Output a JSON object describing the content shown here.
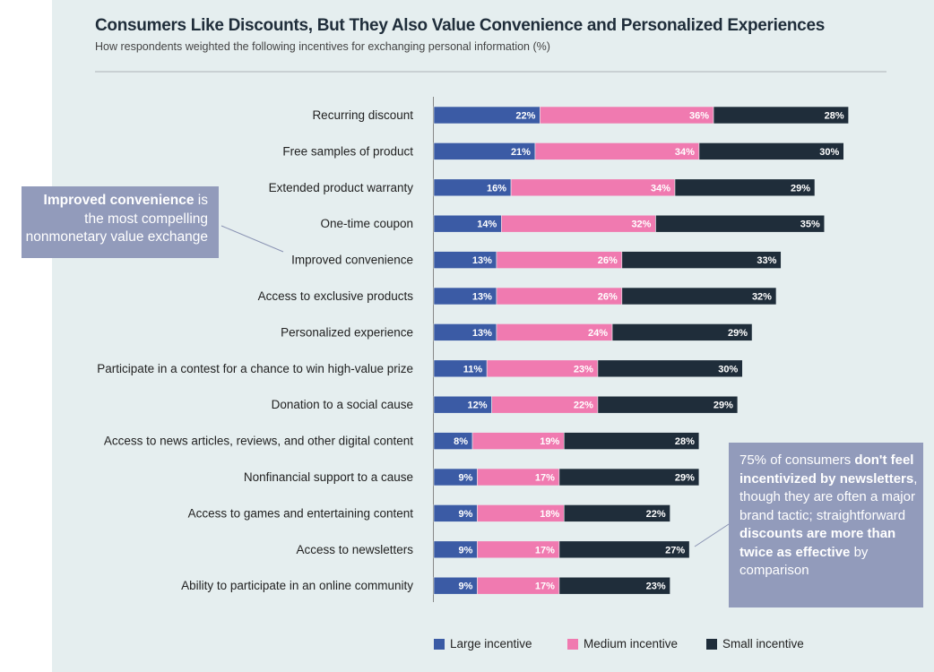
{
  "chart_data": {
    "type": "bar",
    "orientation": "horizontal",
    "stacked": true,
    "title": "Consumers Like Discounts, But They Also Value Convenience and Personalized Experiences",
    "subtitle": "How respondents weighted the following incentives for exchanging personal information (%)",
    "categories": [
      "Recurring discount",
      "Free samples of product",
      "Extended product warranty",
      "One-time coupon",
      "Improved convenience",
      "Access to exclusive products",
      "Personalized experience",
      "Participate in a contest for a chance to win high-value prize",
      "Donation to a social cause",
      "Access to news articles, reviews, and other digital content",
      "Nonfinancial support to a cause",
      "Access to games and entertaining content",
      "Access to newsletters",
      "Ability to participate in an online community"
    ],
    "series": [
      {
        "name": "Large incentive",
        "color": "#3b5ba5",
        "values": [
          22,
          21,
          16,
          14,
          13,
          13,
          13,
          11,
          12,
          8,
          9,
          9,
          9,
          9
        ]
      },
      {
        "name": "Medium incentive",
        "color": "#f07ab0",
        "values": [
          36,
          34,
          34,
          32,
          26,
          26,
          24,
          23,
          22,
          19,
          17,
          18,
          17,
          17
        ]
      },
      {
        "name": "Small incentive",
        "color": "#1f2d3a",
        "values": [
          28,
          30,
          29,
          35,
          33,
          32,
          29,
          30,
          29,
          28,
          29,
          22,
          27,
          23
        ]
      }
    ],
    "legend_position": "bottom",
    "grid": false
  },
  "callouts": [
    {
      "segments": [
        {
          "text": "Improved convenience",
          "bold": true
        },
        {
          "text": " is the most compelling nonmonetary value exchange",
          "bold": false
        }
      ]
    },
    {
      "segments": [
        {
          "text": "75% of consumers ",
          "bold": false
        },
        {
          "text": "don't feel incentivized by newsletters",
          "bold": true
        },
        {
          "text": ", though they are often a major brand tactic; straightforward ",
          "bold": false
        },
        {
          "text": "discounts are more than twice as effective",
          "bold": true
        },
        {
          "text": " by comparison",
          "bold": false
        }
      ]
    }
  ]
}
